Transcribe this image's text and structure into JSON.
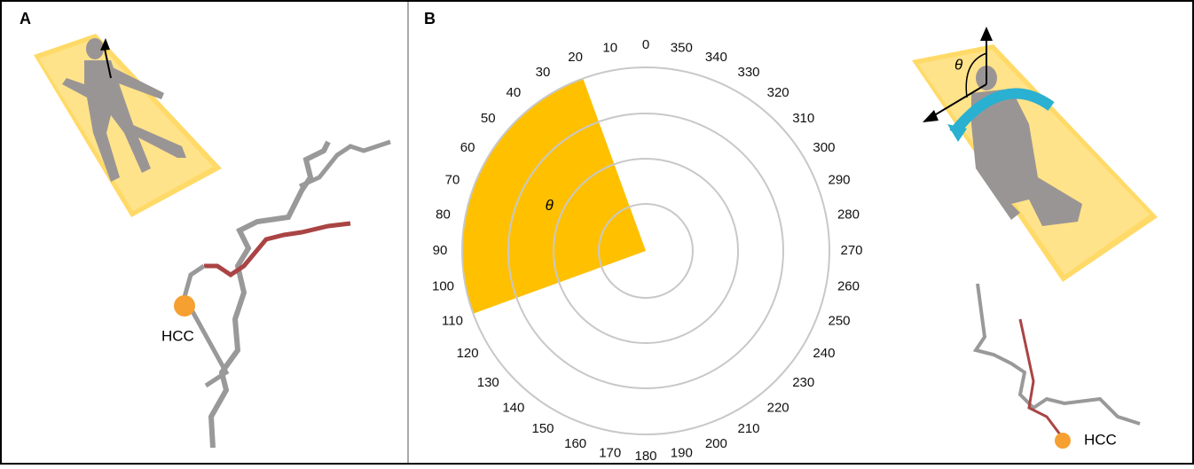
{
  "panels": [
    {
      "label": "A",
      "hcc_label": "HCC"
    },
    {
      "label": "B",
      "polar": {
        "angle_labels": [
          0,
          10,
          20,
          30,
          40,
          50,
          60,
          70,
          80,
          90,
          100,
          110,
          120,
          130,
          140,
          150,
          160,
          170,
          180,
          190,
          200,
          210,
          220,
          230,
          240,
          250,
          260,
          270,
          280,
          290,
          300,
          310,
          320,
          330,
          340,
          350
        ],
        "sector": {
          "start": 20,
          "end": 110,
          "label": "θ"
        }
      },
      "angle_symbol": "θ",
      "hcc_label": "HCC"
    }
  ]
}
